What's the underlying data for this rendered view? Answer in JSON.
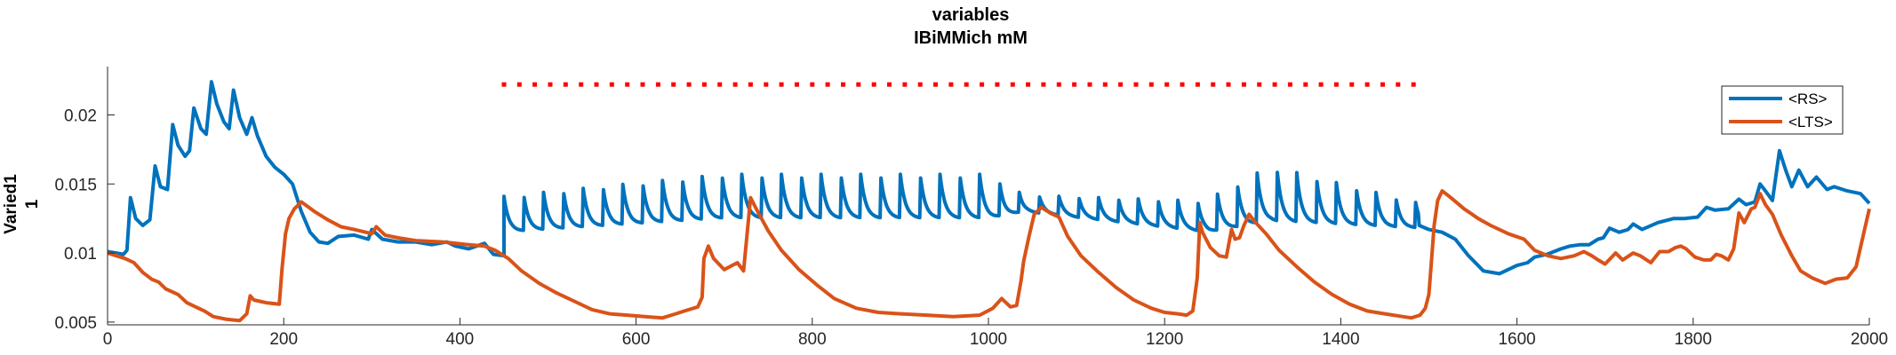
{
  "chart_data": {
    "type": "line",
    "title": "variables",
    "subtitle": "IBiMMich mM",
    "ylabel_line1": "Varied1",
    "ylabel_line2": "1",
    "xlabel": "",
    "xlim": [
      0,
      2000
    ],
    "ylim": [
      0.0048,
      0.0235
    ],
    "xticks": [
      0,
      200,
      400,
      600,
      800,
      1000,
      1200,
      1400,
      1600,
      1800,
      2000
    ],
    "yticks": [
      0.005,
      0.01,
      0.015,
      0.02
    ],
    "ytick_labels": [
      "0.005",
      "0.01",
      "0.015",
      "0.02"
    ],
    "grid": false,
    "legend_placement": "top-right",
    "series": [
      {
        "name": "<RS>",
        "color": "#0072BD",
        "points": [
          [
            0,
            0.0101
          ],
          [
            10,
            0.01
          ],
          [
            18,
            0.0099
          ],
          [
            22,
            0.0102
          ],
          [
            26,
            0.014
          ],
          [
            32,
            0.0125
          ],
          [
            40,
            0.012
          ],
          [
            48,
            0.0124
          ],
          [
            54,
            0.0163
          ],
          [
            60,
            0.0148
          ],
          [
            68,
            0.0146
          ],
          [
            74,
            0.0193
          ],
          [
            80,
            0.0178
          ],
          [
            88,
            0.017
          ],
          [
            93,
            0.0174
          ],
          [
            98,
            0.0205
          ],
          [
            106,
            0.019
          ],
          [
            112,
            0.0186
          ],
          [
            118,
            0.0224
          ],
          [
            124,
            0.0208
          ],
          [
            132,
            0.0195
          ],
          [
            138,
            0.019
          ],
          [
            143,
            0.0218
          ],
          [
            150,
            0.0198
          ],
          [
            158,
            0.0186
          ],
          [
            164,
            0.0198
          ],
          [
            170,
            0.0185
          ],
          [
            180,
            0.017
          ],
          [
            190,
            0.0162
          ],
          [
            200,
            0.0157
          ],
          [
            210,
            0.015
          ],
          [
            220,
            0.013
          ],
          [
            230,
            0.0115
          ],
          [
            240,
            0.0108
          ],
          [
            250,
            0.0107
          ],
          [
            262,
            0.0112
          ],
          [
            280,
            0.0113
          ],
          [
            296,
            0.011
          ],
          [
            300,
            0.0117
          ],
          [
            312,
            0.011
          ],
          [
            330,
            0.0108
          ],
          [
            350,
            0.0108
          ],
          [
            368,
            0.0106
          ],
          [
            385,
            0.0108
          ],
          [
            395,
            0.0105
          ],
          [
            410,
            0.0103
          ],
          [
            428,
            0.0107
          ],
          [
            438,
            0.0099
          ],
          [
            450,
            0.0098
          ]
        ],
        "pulse_segment": {
          "start": 450,
          "end": 1489,
          "period": 22.5,
          "base": [
            [
              450,
              0.0115
            ],
            [
              700,
              0.0125
            ],
            [
              1000,
              0.0125
            ],
            [
              1040,
              0.013
            ],
            [
              1250,
              0.0115
            ],
            [
              1320,
              0.0123
            ],
            [
              1489,
              0.0118
            ]
          ],
          "amplitude": [
            [
              450,
              0.0026
            ],
            [
              700,
              0.0032
            ],
            [
              1000,
              0.0032
            ],
            [
              1040,
              0.0012
            ],
            [
              1240,
              0.0022
            ],
            [
              1320,
              0.004
            ],
            [
              1489,
              0.0018
            ]
          ]
        },
        "tail": [
          [
            1489,
            0.012
          ],
          [
            1500,
            0.0117
          ],
          [
            1515,
            0.0115
          ],
          [
            1530,
            0.011
          ],
          [
            1545,
            0.0098
          ],
          [
            1562,
            0.0087
          ],
          [
            1580,
            0.0085
          ],
          [
            1600,
            0.0091
          ],
          [
            1612,
            0.0093
          ],
          [
            1620,
            0.0097
          ],
          [
            1634,
            0.0099
          ],
          [
            1650,
            0.0103
          ],
          [
            1660,
            0.0105
          ],
          [
            1672,
            0.0106
          ],
          [
            1682,
            0.0106
          ],
          [
            1692,
            0.011
          ],
          [
            1698,
            0.0111
          ],
          [
            1705,
            0.0118
          ],
          [
            1716,
            0.0115
          ],
          [
            1726,
            0.0117
          ],
          [
            1732,
            0.0121
          ],
          [
            1742,
            0.0117
          ],
          [
            1760,
            0.0122
          ],
          [
            1778,
            0.0125
          ],
          [
            1790,
            0.0125
          ],
          [
            1805,
            0.0126
          ],
          [
            1815,
            0.0133
          ],
          [
            1825,
            0.0131
          ],
          [
            1840,
            0.0132
          ],
          [
            1852,
            0.0139
          ],
          [
            1860,
            0.0135
          ],
          [
            1870,
            0.0137
          ],
          [
            1876,
            0.015
          ],
          [
            1882,
            0.0145
          ],
          [
            1890,
            0.0138
          ],
          [
            1898,
            0.0174
          ],
          [
            1905,
            0.016
          ],
          [
            1912,
            0.0148
          ],
          [
            1920,
            0.016
          ],
          [
            1930,
            0.0148
          ],
          [
            1940,
            0.0155
          ],
          [
            1952,
            0.0146
          ],
          [
            1960,
            0.0148
          ],
          [
            1975,
            0.0145
          ],
          [
            1990,
            0.0143
          ],
          [
            2000,
            0.0136
          ]
        ]
      },
      {
        "name": "<LTS>",
        "color": "#D95319",
        "points": [
          [
            0,
            0.01
          ],
          [
            10,
            0.0098
          ],
          [
            20,
            0.0096
          ],
          [
            30,
            0.0093
          ],
          [
            40,
            0.0086
          ],
          [
            50,
            0.0081
          ],
          [
            58,
            0.0079
          ],
          [
            66,
            0.0074
          ],
          [
            80,
            0.007
          ],
          [
            90,
            0.0064
          ],
          [
            100,
            0.0061
          ],
          [
            110,
            0.0058
          ],
          [
            120,
            0.0054
          ],
          [
            135,
            0.0052
          ],
          [
            150,
            0.0051
          ],
          [
            158,
            0.0056
          ],
          [
            162,
            0.0069
          ],
          [
            166,
            0.0066
          ],
          [
            180,
            0.0064
          ],
          [
            195,
            0.0063
          ],
          [
            198,
            0.0088
          ],
          [
            202,
            0.0114
          ],
          [
            206,
            0.0125
          ],
          [
            212,
            0.0132
          ],
          [
            220,
            0.0137
          ],
          [
            235,
            0.013
          ],
          [
            250,
            0.0124
          ],
          [
            265,
            0.0119
          ],
          [
            280,
            0.0117
          ],
          [
            300,
            0.0114
          ],
          [
            305,
            0.0119
          ],
          [
            315,
            0.0113
          ],
          [
            330,
            0.0111
          ],
          [
            350,
            0.0109
          ],
          [
            380,
            0.0108
          ],
          [
            410,
            0.0106
          ],
          [
            428,
            0.0105
          ],
          [
            440,
            0.0102
          ],
          [
            455,
            0.0096
          ],
          [
            470,
            0.0087
          ],
          [
            490,
            0.0078
          ],
          [
            510,
            0.0071
          ],
          [
            530,
            0.0065
          ],
          [
            550,
            0.0059
          ],
          [
            570,
            0.0056
          ],
          [
            590,
            0.0055
          ],
          [
            610,
            0.0054
          ],
          [
            630,
            0.0053
          ],
          [
            645,
            0.0056
          ],
          [
            655,
            0.0058
          ],
          [
            670,
            0.0061
          ],
          [
            675,
            0.0068
          ],
          [
            677,
            0.0096
          ],
          [
            682,
            0.0105
          ],
          [
            688,
            0.0096
          ],
          [
            700,
            0.0088
          ],
          [
            715,
            0.0093
          ],
          [
            722,
            0.0087
          ],
          [
            730,
            0.014
          ],
          [
            738,
            0.013
          ],
          [
            750,
            0.0116
          ],
          [
            765,
            0.0102
          ],
          [
            785,
            0.0088
          ],
          [
            805,
            0.0077
          ],
          [
            825,
            0.0067
          ],
          [
            850,
            0.006
          ],
          [
            875,
            0.0057
          ],
          [
            900,
            0.0056
          ],
          [
            930,
            0.0055
          ],
          [
            960,
            0.0054
          ],
          [
            990,
            0.0055
          ],
          [
            1005,
            0.006
          ],
          [
            1015,
            0.0067
          ],
          [
            1025,
            0.0061
          ],
          [
            1032,
            0.0062
          ],
          [
            1037,
            0.008
          ],
          [
            1040,
            0.0094
          ],
          [
            1046,
            0.0112
          ],
          [
            1052,
            0.0128
          ],
          [
            1060,
            0.0133
          ],
          [
            1070,
            0.0129
          ],
          [
            1080,
            0.0126
          ],
          [
            1090,
            0.0112
          ],
          [
            1105,
            0.0098
          ],
          [
            1125,
            0.0086
          ],
          [
            1145,
            0.0075
          ],
          [
            1165,
            0.0066
          ],
          [
            1185,
            0.006
          ],
          [
            1200,
            0.0057
          ],
          [
            1215,
            0.0056
          ],
          [
            1225,
            0.0055
          ],
          [
            1232,
            0.0058
          ],
          [
            1237,
            0.0082
          ],
          [
            1240,
            0.0122
          ],
          [
            1243,
            0.0115
          ],
          [
            1252,
            0.0104
          ],
          [
            1262,
            0.0098
          ],
          [
            1270,
            0.0097
          ],
          [
            1276,
            0.0117
          ],
          [
            1280,
            0.011
          ],
          [
            1285,
            0.0111
          ],
          [
            1290,
            0.012
          ],
          [
            1296,
            0.0128
          ],
          [
            1302,
            0.0123
          ],
          [
            1315,
            0.0114
          ],
          [
            1330,
            0.0102
          ],
          [
            1350,
            0.009
          ],
          [
            1370,
            0.0079
          ],
          [
            1390,
            0.007
          ],
          [
            1410,
            0.0063
          ],
          [
            1430,
            0.0058
          ],
          [
            1450,
            0.0056
          ],
          [
            1470,
            0.0054
          ],
          [
            1480,
            0.0053
          ],
          [
            1490,
            0.0055
          ],
          [
            1496,
            0.006
          ],
          [
            1500,
            0.007
          ],
          [
            1503,
            0.0095
          ],
          [
            1506,
            0.012
          ],
          [
            1510,
            0.0138
          ],
          [
            1515,
            0.0145
          ],
          [
            1525,
            0.014
          ],
          [
            1540,
            0.0132
          ],
          [
            1556,
            0.0125
          ],
          [
            1570,
            0.012
          ],
          [
            1590,
            0.0114
          ],
          [
            1608,
            0.011
          ],
          [
            1620,
            0.0102
          ],
          [
            1635,
            0.0098
          ],
          [
            1650,
            0.0096
          ],
          [
            1665,
            0.0098
          ],
          [
            1676,
            0.0101
          ],
          [
            1685,
            0.0098
          ],
          [
            1692,
            0.0095
          ],
          [
            1700,
            0.0092
          ],
          [
            1712,
            0.01
          ],
          [
            1720,
            0.0095
          ],
          [
            1732,
            0.01
          ],
          [
            1740,
            0.0098
          ],
          [
            1752,
            0.0093
          ],
          [
            1762,
            0.0101
          ],
          [
            1772,
            0.0101
          ],
          [
            1780,
            0.0104
          ],
          [
            1786,
            0.0105
          ],
          [
            1792,
            0.0103
          ],
          [
            1802,
            0.0097
          ],
          [
            1812,
            0.0095
          ],
          [
            1820,
            0.0095
          ],
          [
            1826,
            0.0099
          ],
          [
            1832,
            0.0098
          ],
          [
            1840,
            0.0095
          ],
          [
            1846,
            0.0103
          ],
          [
            1852,
            0.0129
          ],
          [
            1858,
            0.0122
          ],
          [
            1866,
            0.0132
          ],
          [
            1870,
            0.0133
          ],
          [
            1876,
            0.0143
          ],
          [
            1882,
            0.0135
          ],
          [
            1890,
            0.0128
          ],
          [
            1900,
            0.0113
          ],
          [
            1912,
            0.0098
          ],
          [
            1922,
            0.0087
          ],
          [
            1935,
            0.0082
          ],
          [
            1950,
            0.0078
          ],
          [
            1962,
            0.0081
          ],
          [
            1975,
            0.0082
          ],
          [
            1985,
            0.009
          ],
          [
            1995,
            0.0118
          ],
          [
            2000,
            0.0132
          ]
        ]
      },
      {
        "name": "",
        "type": "scatter",
        "color": "#FF0000",
        "marker": "square",
        "y": 0.0222,
        "x": [
          450,
          467.5,
          485,
          502.5,
          520,
          537.5,
          555,
          572.5,
          590,
          607.5,
          625,
          642.5,
          660,
          677.5,
          695,
          712.5,
          730,
          747.5,
          765,
          782.5,
          800,
          817.5,
          835,
          852.5,
          870,
          887.5,
          905,
          922.5,
          940,
          957.5,
          975,
          992.5,
          1010,
          1027.5,
          1045,
          1062.5,
          1080,
          1097.5,
          1115,
          1132.5,
          1150,
          1167.5,
          1185,
          1202.5,
          1220,
          1237.5,
          1255,
          1272.5,
          1290,
          1307.5,
          1325,
          1342.5,
          1360,
          1377.5,
          1395,
          1412.5,
          1430,
          1447.5,
          1465,
          1482.5
        ]
      }
    ]
  }
}
